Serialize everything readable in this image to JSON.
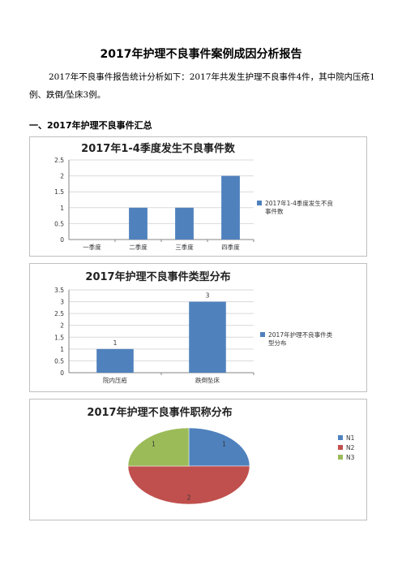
{
  "document": {
    "title": "2017年护理不良事件案例成因分析报告",
    "paragraph": "2017年不良事件报告统计分析如下：2017年共发生护理不良事件4件，其中院内压疮1例、跌倒/坠床3例。",
    "section_heading": "一、2017年护理不良事件汇总"
  },
  "chart_data": [
    {
      "type": "bar",
      "title": "2017年1-4季度发生不良事件数",
      "categories": [
        "一季度",
        "二季度",
        "三季度",
        "四季度"
      ],
      "series": [
        {
          "name": "2017年1-4季度发生不良事件数",
          "values": [
            0,
            1,
            1,
            2
          ],
          "color": "#4f81bd"
        }
      ],
      "ylim": [
        0,
        2.5
      ],
      "yticks": [
        "0",
        "0.5",
        "1",
        "1.5",
        "2",
        "2.5"
      ],
      "grid": true,
      "legend_position": "right",
      "data_labels": false
    },
    {
      "type": "bar",
      "title": "2017年护理不良事件类型分布",
      "categories": [
        "院内压疮",
        "跌倒坠床"
      ],
      "series": [
        {
          "name": "2017年护理不良事件类型分布",
          "values": [
            1,
            3
          ],
          "color": "#4f81bd"
        }
      ],
      "ylim": [
        0,
        3.5
      ],
      "yticks": [
        "0",
        "0.5",
        "1",
        "1.5",
        "2",
        "2.5",
        "3",
        "3.5"
      ],
      "grid": true,
      "legend_position": "right",
      "data_labels": true
    },
    {
      "type": "pie",
      "title": "2017年护理不良事件职称分布",
      "slices": [
        {
          "name": "N1",
          "value": 1,
          "color": "#4f81bd"
        },
        {
          "name": "N2",
          "value": 2,
          "color": "#c0504d"
        },
        {
          "name": "N3",
          "value": 1,
          "color": "#9bbb59"
        }
      ],
      "legend_position": "right",
      "data_labels": true
    }
  ]
}
